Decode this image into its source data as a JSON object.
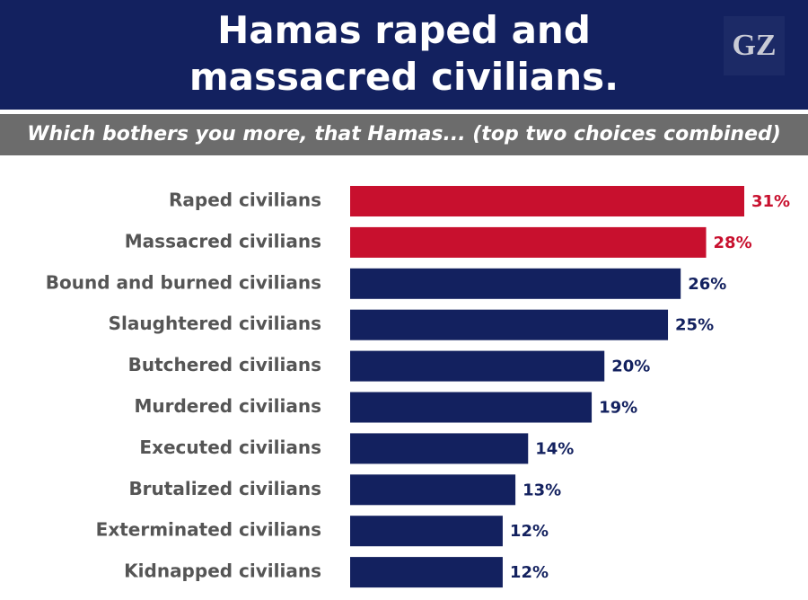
{
  "logo": "GZ",
  "chart_data": {
    "type": "bar",
    "orientation": "horizontal",
    "title": "Hamas raped and massacred civilians.",
    "subtitle": "Which bothers you more, that Hamas... (top two choices combined)",
    "categories": [
      "Raped civilians",
      "Massacred civilians",
      "Bound and burned civilians",
      "Slaughtered civilians",
      "Butchered civilians",
      "Murdered civilians",
      "Executed civilians",
      "Brutalized civilians",
      "Exterminated civilians",
      "Kidnapped civilians"
    ],
    "values": [
      31,
      28,
      26,
      25,
      20,
      19,
      14,
      13,
      12,
      12
    ],
    "value_labels": [
      "31%",
      "28%",
      "26%",
      "25%",
      "20%",
      "19%",
      "14%",
      "13%",
      "12%",
      "12%"
    ],
    "colors": [
      "#c8102e",
      "#c8102e",
      "#13215f",
      "#13215f",
      "#13215f",
      "#13215f",
      "#13215f",
      "#13215f",
      "#13215f",
      "#13215f"
    ]
  }
}
